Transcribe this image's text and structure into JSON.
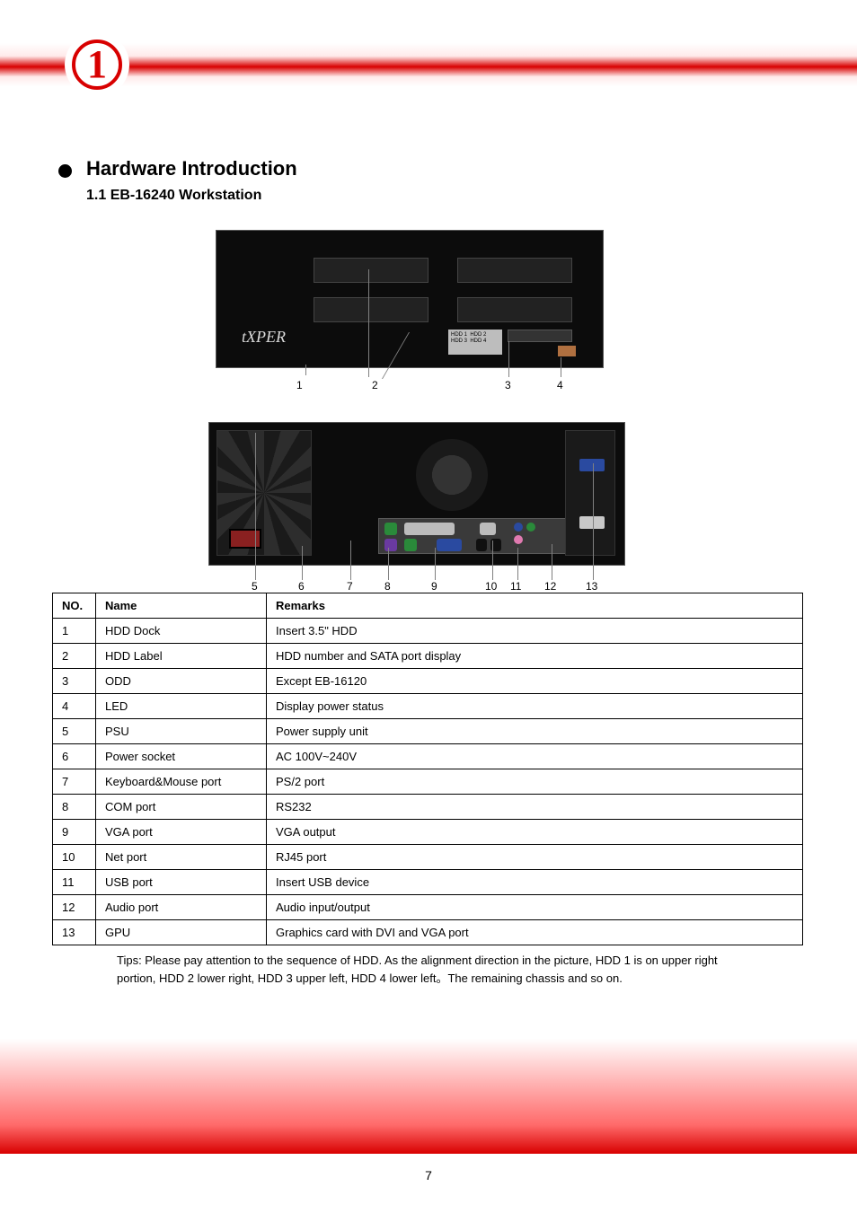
{
  "badge": {
    "number": "1"
  },
  "section": {
    "heading": "Hardware Introduction",
    "sub": "1.1 EB-16240 Workstation"
  },
  "front_labels": {
    "hdd1": "1",
    "hdd2": "1",
    "hdd3": "1",
    "hdd4": "1",
    "hdd_label_text": "2",
    "odd": "3",
    "led": "4"
  },
  "rear_labels": {
    "psu": "5",
    "pwr": "6",
    "kbms": "7",
    "com": "8",
    "vga": "9",
    "net": "10",
    "usb": "11",
    "audio": "12",
    "card_vga": "13",
    "card_dvi": "13"
  },
  "table": {
    "columns": [
      "NO.",
      "Name",
      "Remarks"
    ],
    "rows": [
      [
        "1",
        "HDD Dock",
        "Insert 3.5\" HDD"
      ],
      [
        "2",
        "HDD Label",
        "HDD number and SATA port display"
      ],
      [
        "3",
        "ODD",
        "Except EB-16120"
      ],
      [
        "4",
        "LED",
        "Display power status"
      ],
      [
        "5",
        "PSU",
        "Power supply unit"
      ],
      [
        "6",
        "Power socket",
        "AC 100V~240V"
      ],
      [
        "7",
        "Keyboard&Mouse port",
        "PS/2 port"
      ],
      [
        "8",
        "COM port",
        "RS232"
      ],
      [
        "9",
        "VGA port",
        "VGA output"
      ],
      [
        "10",
        "Net port",
        "RJ45 port"
      ],
      [
        "11",
        "USB port",
        "Insert USB device"
      ],
      [
        "12",
        "Audio port",
        "Audio input/output"
      ],
      [
        "13",
        "GPU",
        "Graphics card with DVI and VGA port"
      ]
    ]
  },
  "tip": "Tips: Please pay attention to the sequence of HDD. As the alignment direction in the picture, HDD 1 is on upper right portion, HDD 2 lower right, HDD 3 upper left, HDD 4 lower left。The remaining chassis and so on.",
  "page_number": "7",
  "colors": {
    "brand_red": "#d80000",
    "lead_gray": "#808080",
    "table_border": "#000000"
  },
  "logo_text": "tXPER"
}
